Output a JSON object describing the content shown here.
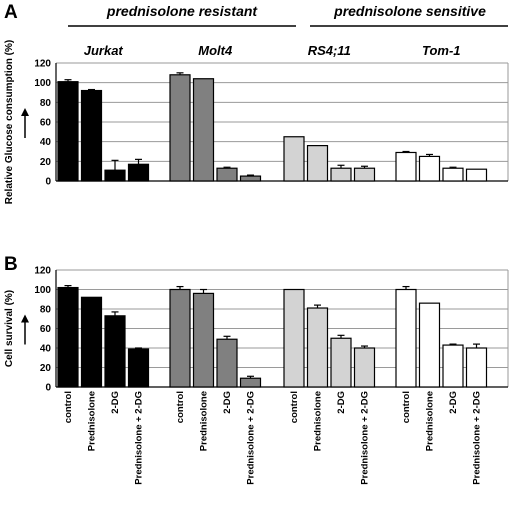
{
  "header": {
    "resistant_title": "prednisolone resistant",
    "sensitive_title": "prednisolone sensitive"
  },
  "chart_data": [
    {
      "panel": "A",
      "type": "bar",
      "ylabel": "Relative  Glucose consumption (%)",
      "ylim": [
        0,
        120
      ],
      "yticks": [
        0,
        20,
        40,
        60,
        80,
        100,
        120
      ],
      "grid": true,
      "cell_lines": [
        {
          "name": "Jurkat",
          "color": "#000000",
          "values": [
            101,
            92,
            11,
            17
          ],
          "errors": [
            2,
            1,
            10,
            5
          ]
        },
        {
          "name": "Molt4",
          "color": "#808080",
          "values": [
            108,
            104,
            13,
            5
          ],
          "errors": [
            2,
            0,
            1,
            1
          ]
        },
        {
          "name": "RS4;11",
          "color": "#d3d3d3",
          "values": [
            45,
            36,
            13,
            13
          ],
          "errors": [
            0,
            0,
            3,
            2
          ]
        },
        {
          "name": "Tom-1",
          "color": "#ffffff",
          "values": [
            29,
            25,
            13,
            12
          ],
          "errors": [
            1,
            2,
            1,
            0
          ]
        }
      ]
    },
    {
      "panel": "B",
      "type": "bar",
      "ylabel": "Cell survival (%)",
      "ylim": [
        0,
        120
      ],
      "yticks": [
        0,
        20,
        40,
        60,
        80,
        100,
        120
      ],
      "grid": true,
      "categories": [
        "control",
        "Prednisolone",
        "2-DG",
        "Prednisolone + 2-DG"
      ],
      "cell_lines": [
        {
          "name": "Jurkat",
          "color": "#000000",
          "values": [
            102,
            92,
            73,
            39
          ],
          "errors": [
            2,
            0,
            4,
            1
          ]
        },
        {
          "name": "Molt4",
          "color": "#808080",
          "values": [
            100,
            96,
            49,
            9
          ],
          "errors": [
            3,
            4,
            3,
            2
          ]
        },
        {
          "name": "RS4;11",
          "color": "#d3d3d3",
          "values": [
            100,
            81,
            50,
            40
          ],
          "errors": [
            0,
            3,
            3,
            2
          ]
        },
        {
          "name": "Tom-1",
          "color": "#ffffff",
          "values": [
            100,
            86,
            43,
            40
          ],
          "errors": [
            3,
            0,
            1,
            4
          ]
        }
      ]
    }
  ]
}
